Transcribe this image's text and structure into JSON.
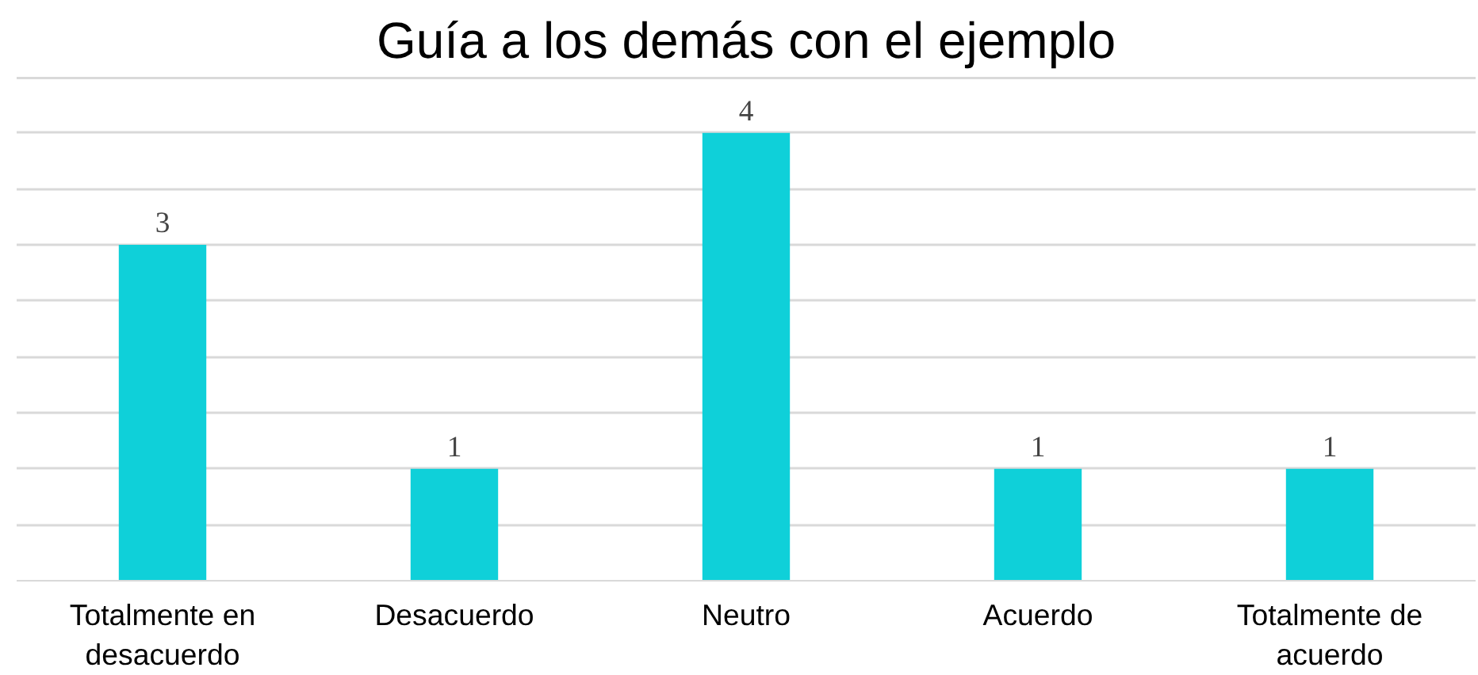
{
  "chart_data": {
    "type": "bar",
    "title": "Guía a los demás con el ejemplo",
    "categories": [
      "Totalmente en desacuerdo",
      "Desacuerdo",
      "Neutro",
      "Acuerdo",
      "Totalmente de acuerdo"
    ],
    "values": [
      3,
      1,
      4,
      1,
      1
    ],
    "color": "#0fd0d9",
    "data_labels": true,
    "ylim": [
      0,
      4.5
    ],
    "yticks": [
      {
        "value": 0,
        "label": null
      },
      {
        "value": 0.5,
        "label": null
      },
      {
        "value": 1,
        "label": null
      },
      {
        "value": 1.5,
        "label": null
      },
      {
        "value": 2,
        "label": null
      },
      {
        "value": 2.5,
        "label": null
      },
      {
        "value": 3,
        "label": null
      },
      {
        "value": 3.5,
        "label": null
      },
      {
        "value": 4,
        "label": null
      },
      {
        "value": 4.5,
        "label": null
      }
    ],
    "grid": "y",
    "tick_labels": "x"
  }
}
